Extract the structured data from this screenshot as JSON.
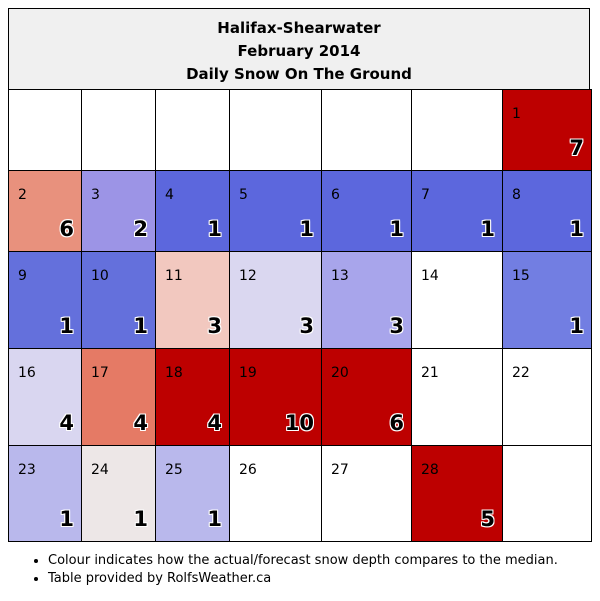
{
  "header": {
    "station": "Halifax-Shearwater",
    "period": "February 2014",
    "subtitle": "Daily Snow On The Ground"
  },
  "calendar": {
    "rows": [
      [
        {
          "day": "",
          "value": "",
          "color": "#ffffff"
        },
        {
          "day": "",
          "value": "",
          "color": "#ffffff"
        },
        {
          "day": "",
          "value": "",
          "color": "#ffffff"
        },
        {
          "day": "",
          "value": "",
          "color": "#ffffff"
        },
        {
          "day": "",
          "value": "",
          "color": "#ffffff"
        },
        {
          "day": "",
          "value": "",
          "color": "#ffffff"
        },
        {
          "day": "1",
          "value": "7",
          "color": "#bd0000"
        }
      ],
      [
        {
          "day": "2",
          "value": "6",
          "color": "#e8917d"
        },
        {
          "day": "3",
          "value": "2",
          "color": "#9c94e6"
        },
        {
          "day": "4",
          "value": "1",
          "color": "#5c67dd"
        },
        {
          "day": "5",
          "value": "1",
          "color": "#5c67dd"
        },
        {
          "day": "6",
          "value": "1",
          "color": "#5c67dd"
        },
        {
          "day": "7",
          "value": "1",
          "color": "#5c67dd"
        },
        {
          "day": "8",
          "value": "1",
          "color": "#5c67dd"
        }
      ],
      [
        {
          "day": "9",
          "value": "1",
          "color": "#6470dc"
        },
        {
          "day": "10",
          "value": "1",
          "color": "#6470dc"
        },
        {
          "day": "11",
          "value": "3",
          "color": "#f2c8bf"
        },
        {
          "day": "12",
          "value": "3",
          "color": "#dad7f0"
        },
        {
          "day": "13",
          "value": "3",
          "color": "#a8a5eb"
        },
        {
          "day": "14",
          "value": "",
          "color": "#ffffff"
        },
        {
          "day": "15",
          "value": "1",
          "color": "#727ee2"
        }
      ],
      [
        {
          "day": "16",
          "value": "4",
          "color": "#d9d6f0"
        },
        {
          "day": "17",
          "value": "4",
          "color": "#e57a65"
        },
        {
          "day": "18",
          "value": "4",
          "color": "#bd0000"
        },
        {
          "day": "19",
          "value": "10",
          "color": "#bd0000"
        },
        {
          "day": "20",
          "value": "6",
          "color": "#bd0000"
        },
        {
          "day": "21",
          "value": "",
          "color": "#ffffff"
        },
        {
          "day": "22",
          "value": "",
          "color": "#ffffff"
        }
      ],
      [
        {
          "day": "23",
          "value": "1",
          "color": "#b9b8ec"
        },
        {
          "day": "24",
          "value": "1",
          "color": "#ede7e7"
        },
        {
          "day": "25",
          "value": "1",
          "color": "#b9b8ec"
        },
        {
          "day": "26",
          "value": "",
          "color": "#ffffff"
        },
        {
          "day": "27",
          "value": "",
          "color": "#ffffff"
        },
        {
          "day": "28",
          "value": "5",
          "color": "#bd0000"
        },
        {
          "day": "",
          "value": "",
          "color": "#ffffff"
        }
      ]
    ]
  },
  "notes": [
    "Colour indicates how the actual/forecast snow depth compares to the median.",
    "Table provided by RolfsWeather.ca"
  ]
}
